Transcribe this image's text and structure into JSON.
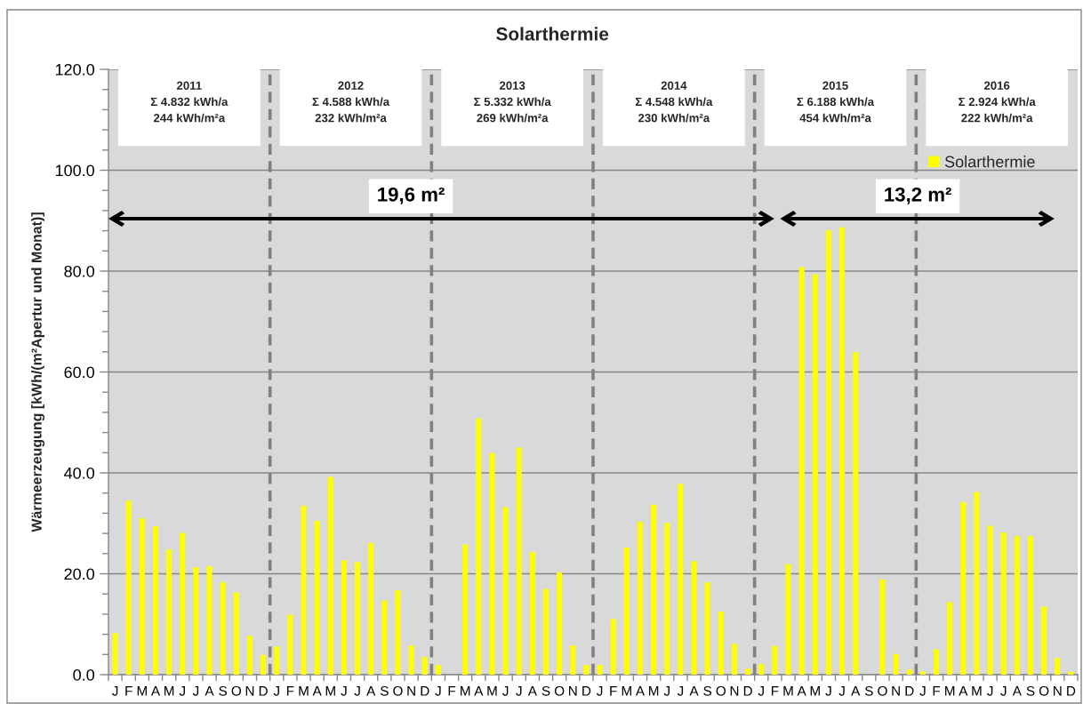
{
  "chart_data": {
    "type": "bar",
    "title": "Solarthermie",
    "ylabel": "Wärmeerzeugung [kWh/(m²Apertur und Monat)]",
    "categories": [
      "J",
      "F",
      "M",
      "A",
      "M",
      "J",
      "J",
      "A",
      "S",
      "O",
      "N",
      "D",
      "J",
      "F",
      "M",
      "A",
      "M",
      "J",
      "J",
      "A",
      "S",
      "O",
      "N",
      "D",
      "J",
      "F",
      "M",
      "A",
      "M",
      "J",
      "J",
      "A",
      "S",
      "O",
      "N",
      "D",
      "J",
      "F",
      "M",
      "A",
      "M",
      "J",
      "J",
      "A",
      "S",
      "O",
      "N",
      "D",
      "J",
      "F",
      "M",
      "A",
      "M",
      "J",
      "J",
      "A",
      "S",
      "O",
      "N",
      "D",
      "J",
      "F",
      "M",
      "A",
      "M",
      "J",
      "J",
      "A",
      "S",
      "O",
      "N",
      "D"
    ],
    "series": [
      {
        "name": "Solarthermie",
        "color": "#ffff00",
        "values": [
          8.2,
          34.5,
          31.0,
          29.4,
          24.8,
          28.1,
          21.3,
          21.5,
          18.3,
          16.3,
          7.7,
          3.9,
          5.6,
          11.9,
          33.5,
          30.5,
          39.2,
          22.7,
          22.3,
          26.1,
          14.7,
          16.7,
          5.8,
          3.5,
          1.9,
          null,
          25.8,
          50.8,
          43.9,
          33.2,
          45.0,
          24.3,
          17.0,
          20.3,
          5.8,
          1.9,
          1.9,
          11.0,
          25.2,
          30.3,
          33.7,
          30.1,
          37.8,
          22.5,
          18.3,
          12.5,
          6.1,
          1.2,
          2.1,
          5.7,
          21.9,
          80.8,
          79.4,
          88.1,
          88.7,
          63.9,
          null,
          18.9,
          4.1,
          1.0,
          0.6,
          5.0,
          14.4,
          34.2,
          36.2,
          29.5,
          28.2,
          27.5,
          27.5,
          13.5,
          3.3,
          0.6
        ]
      }
    ],
    "ylim": [
      0,
      120
    ],
    "yticks": [
      {
        "value": 0,
        "label": "0.0"
      },
      {
        "value": 4,
        "label": null
      },
      {
        "value": 8,
        "label": null
      },
      {
        "value": 12,
        "label": null
      },
      {
        "value": 16,
        "label": null
      },
      {
        "value": 20,
        "label": "20.0"
      },
      {
        "value": 24,
        "label": null
      },
      {
        "value": 28,
        "label": null
      },
      {
        "value": 32,
        "label": null
      },
      {
        "value": 36,
        "label": null
      },
      {
        "value": 40,
        "label": "40.0"
      },
      {
        "value": 44,
        "label": null
      },
      {
        "value": 48,
        "label": null
      },
      {
        "value": 52,
        "label": null
      },
      {
        "value": 56,
        "label": null
      },
      {
        "value": 60,
        "label": "60.0"
      },
      {
        "value": 64,
        "label": null
      },
      {
        "value": 68,
        "label": null
      },
      {
        "value": 72,
        "label": null
      },
      {
        "value": 76,
        "label": null
      },
      {
        "value": 80,
        "label": "80.0"
      },
      {
        "value": 84,
        "label": null
      },
      {
        "value": 88,
        "label": null
      },
      {
        "value": 92,
        "label": null
      },
      {
        "value": 96,
        "label": null
      },
      {
        "value": 100,
        "label": "100.0"
      },
      {
        "value": 104,
        "label": null
      },
      {
        "value": 108,
        "label": null
      },
      {
        "value": 112,
        "label": null
      },
      {
        "value": 116,
        "label": null
      },
      {
        "value": 120,
        "label": "120.0"
      }
    ],
    "grid": "y",
    "legend": "top right",
    "annotations": [
      "2011\nΣ 4.832 kWh/a\n244 kWh/m²a",
      "2012\nΣ 4.588 kWh/a\n232 kWh/m²a",
      "2013\nΣ 5.332 kWh/a\n269 kWh/m²a",
      "2014\nΣ 4.548 kWh/a\n230 kWh/m²a",
      "2015\nΣ 6.188 kWh/a\n454 kWh/m²a",
      "2016\nΣ 2.924 kWh/a\n222 kWh/m²a",
      "19,6 m²",
      "13,2 m²"
    ]
  }
}
